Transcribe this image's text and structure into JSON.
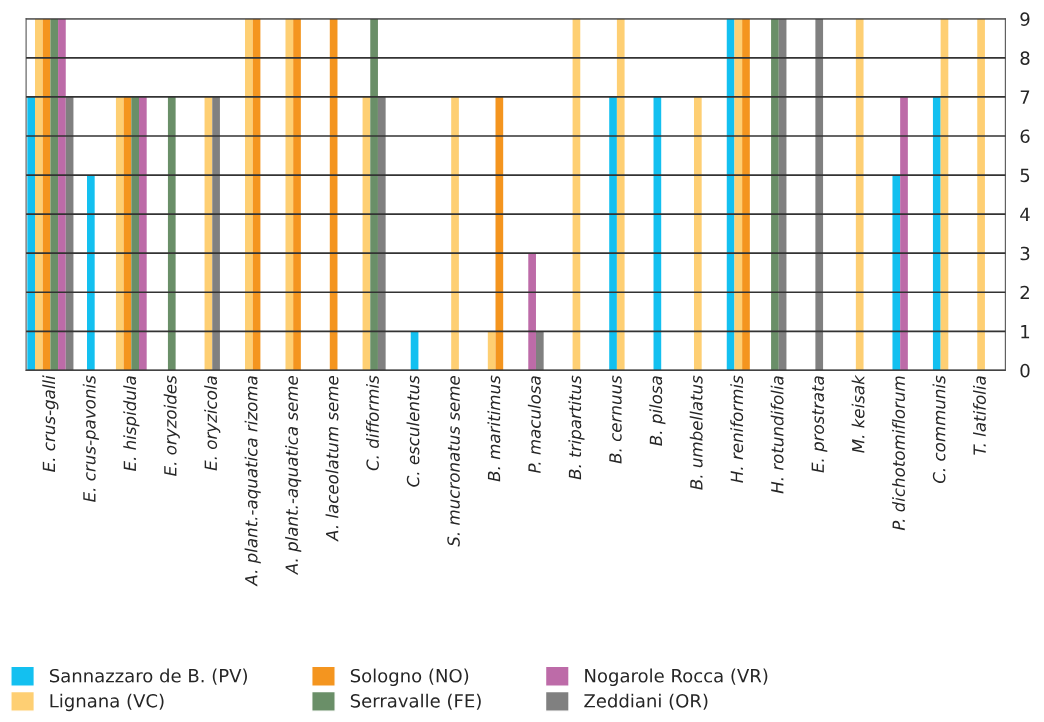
{
  "chart_data": {
    "type": "bar",
    "categories": [
      "E. crus-galli",
      "E. crus-pavonis",
      "E. hispidula",
      "E. oryzoides",
      "E. oryzicola",
      "A. plant.-aquatica rizoma",
      "A. plant.-aquatica seme",
      "A. laceolatum seme",
      "C. difformis",
      "C. esculentus",
      "S. mucronatus seme",
      "B. maritimus",
      "P. maculosa",
      "B. tripartitus",
      "B. cernuus",
      "B. pilosa",
      "B. umbellatus",
      "H. reniformis",
      "H. rotundifolia",
      "E. prostrata",
      "M. keisak",
      "P. dichotomiflorum",
      "C. communis",
      "T. latifolia"
    ],
    "series": [
      {
        "name": "Sannazzaro de B. (PV)",
        "color": "#13c0f0",
        "values": [
          7,
          5,
          null,
          null,
          null,
          null,
          null,
          null,
          null,
          1,
          null,
          null,
          null,
          null,
          7,
          7,
          null,
          9,
          null,
          null,
          null,
          5,
          7,
          null
        ]
      },
      {
        "name": "Lignana (VC)",
        "color": "#fecf73",
        "values": [
          9,
          null,
          7,
          null,
          7,
          9,
          9,
          null,
          7,
          null,
          7,
          1,
          null,
          9,
          9,
          null,
          7,
          9,
          null,
          null,
          9,
          null,
          9,
          9
        ]
      },
      {
        "name": "Sologno (NO)",
        "color": "#f4951f",
        "values": [
          9,
          null,
          7,
          null,
          null,
          9,
          9,
          9,
          null,
          null,
          null,
          7,
          null,
          null,
          null,
          null,
          null,
          9,
          null,
          null,
          null,
          null,
          null,
          null
        ]
      },
      {
        "name": "Serravalle (FE)",
        "color": "#6a8f68",
        "values": [
          9,
          null,
          7,
          7,
          null,
          null,
          null,
          null,
          9,
          null,
          null,
          null,
          null,
          null,
          null,
          null,
          null,
          null,
          9,
          null,
          null,
          null,
          null,
          null
        ]
      },
      {
        "name": "Nogarole Rocca (VR)",
        "color": "#bd6ba8",
        "values": [
          9,
          null,
          7,
          null,
          null,
          null,
          null,
          null,
          null,
          null,
          null,
          null,
          3,
          null,
          null,
          null,
          null,
          null,
          null,
          null,
          null,
          7,
          null,
          null
        ]
      },
      {
        "name": "Zeddiani (OR)",
        "color": "#808080",
        "values": [
          7,
          null,
          null,
          null,
          7,
          null,
          null,
          null,
          7,
          null,
          null,
          null,
          1,
          null,
          null,
          null,
          null,
          null,
          9,
          9,
          null,
          null,
          null,
          null
        ]
      }
    ],
    "ylim": [
      0,
      9
    ],
    "yticks": [
      0,
      1,
      2,
      3,
      4,
      5,
      6,
      7,
      8,
      9
    ],
    "grid": "y",
    "legend": "bottom"
  }
}
